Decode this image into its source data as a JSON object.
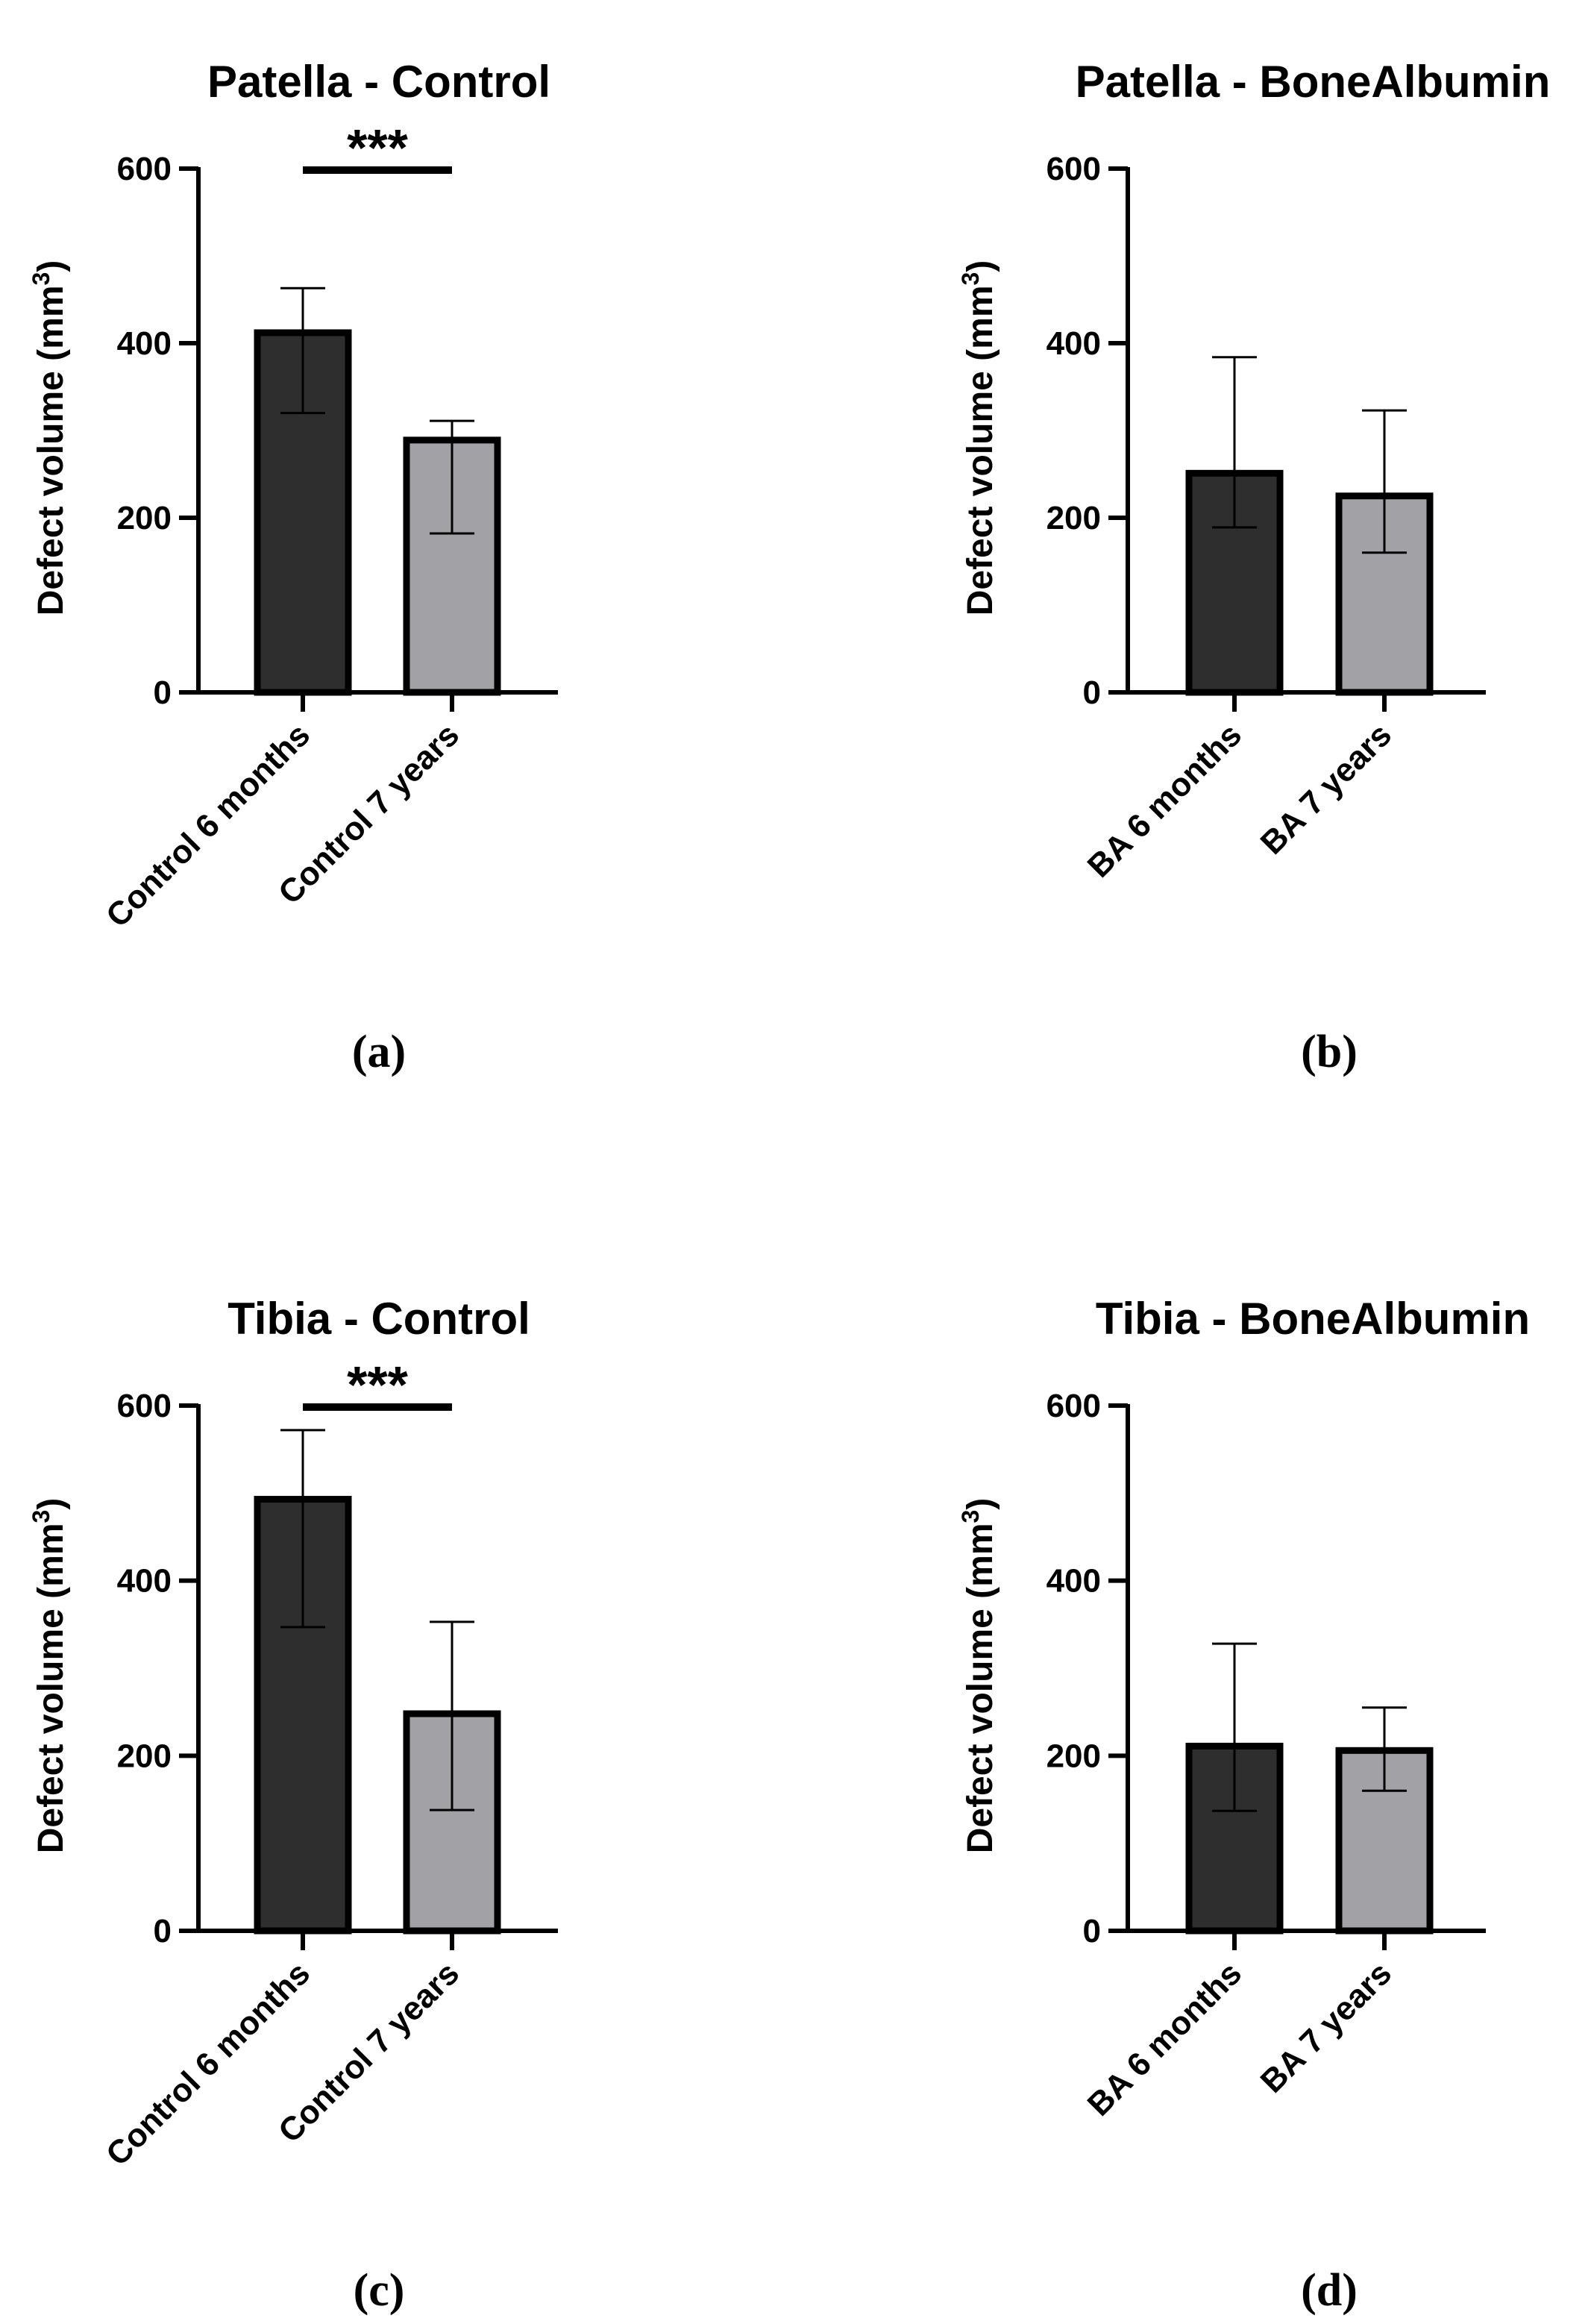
{
  "chart_data": [
    {
      "type": "bar",
      "panel_label": "(a)",
      "title": "Patella - Control",
      "ylabel": "Defect volume (mm",
      "ylabel_sup": "3",
      "ylabel_close": ")",
      "ylim": [
        0,
        600
      ],
      "yticks": [
        0,
        200,
        400,
        600
      ],
      "categories": [
        "Control 6 months",
        "Control 7 years"
      ],
      "values": [
        412,
        289
      ],
      "err_low": [
        320,
        182
      ],
      "err_high": [
        463,
        311
      ],
      "bar_colors": [
        "#2e2e2e",
        "#a2a1a6"
      ],
      "significance": "***"
    },
    {
      "type": "bar",
      "panel_label": "(b)",
      "title": "Patella - BoneAlbumin",
      "ylabel": "Defect volume (mm",
      "ylabel_sup": "3",
      "ylabel_close": ")",
      "ylim": [
        0,
        600
      ],
      "yticks": [
        0,
        200,
        400,
        600
      ],
      "categories": [
        "BA 6 months",
        "BA 7 years"
      ],
      "values": [
        251,
        225
      ],
      "err_low": [
        189,
        160
      ],
      "err_high": [
        384,
        323
      ],
      "bar_colors": [
        "#2e2e2e",
        "#a2a1a6"
      ],
      "significance": ""
    },
    {
      "type": "bar",
      "panel_label": "(c)",
      "title": "Tibia - Control",
      "ylabel": "Defect volume (mm",
      "ylabel_sup": "3",
      "ylabel_close": ")",
      "ylim": [
        0,
        600
      ],
      "yticks": [
        0,
        200,
        400,
        600
      ],
      "categories": [
        "Control 6 months",
        "Control 7 years"
      ],
      "values": [
        493,
        248
      ],
      "err_low": [
        347,
        138
      ],
      "err_high": [
        572,
        353
      ],
      "bar_colors": [
        "#2e2e2e",
        "#a2a1a6"
      ],
      "significance": "***"
    },
    {
      "type": "bar",
      "panel_label": "(d)",
      "title": "Tibia - BoneAlbumin",
      "ylabel": "Defect volume (mm",
      "ylabel_sup": "3",
      "ylabel_close": ")",
      "ylim": [
        0,
        600
      ],
      "yticks": [
        0,
        200,
        400,
        600
      ],
      "categories": [
        "BA 6 months",
        "BA 7 years"
      ],
      "values": [
        211,
        206
      ],
      "err_low": [
        137,
        160
      ],
      "err_high": [
        328,
        255
      ],
      "bar_colors": [
        "#2e2e2e",
        "#a2a1a6"
      ],
      "significance": ""
    }
  ]
}
